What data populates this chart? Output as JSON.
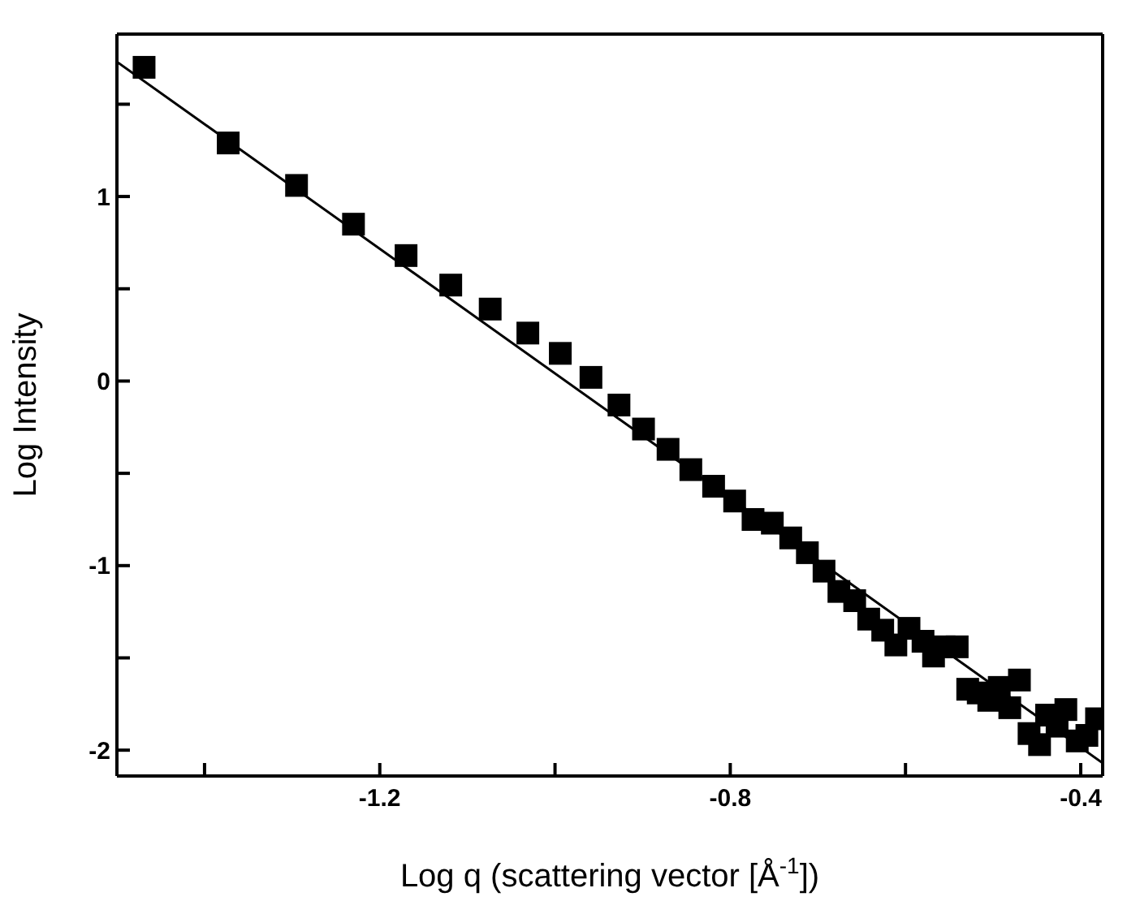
{
  "chart_data": {
    "type": "scatter",
    "xlabel": "Log q (scattering vector [Å$^{-1}$])",
    "ylabel": "Log Intensity",
    "xlim": [
      -1.5,
      -0.375
    ],
    "ylim": [
      -2.14,
      1.88
    ],
    "xticks": [
      {
        "value": -1.4,
        "label": null
      },
      -1.2,
      {
        "value": -1.0,
        "label": null
      },
      -0.8,
      {
        "value": -0.6,
        "label": null
      },
      -0.4
    ],
    "yticks": [
      -2,
      {
        "value": -1.5,
        "label": null
      },
      -1,
      {
        "value": -0.5,
        "label": null
      },
      0,
      {
        "value": 0.5,
        "label": null
      },
      1,
      {
        "value": 1.5,
        "label": null
      }
    ],
    "grid": false,
    "marker": "square",
    "series": [
      {
        "color": "#000000",
        "x": [
          -1.469,
          -1.373,
          -1.295,
          -1.23,
          -1.17,
          -1.119,
          -1.074,
          -1.031,
          -0.994,
          -0.959,
          -0.927,
          -0.899,
          -0.871,
          -0.845,
          -0.819,
          -0.795,
          -0.774,
          -0.752,
          -0.731,
          -0.712,
          -0.693,
          -0.676,
          -0.658,
          -0.642,
          -0.626,
          -0.611,
          -0.596,
          -0.58,
          -0.568,
          -0.556,
          -0.541,
          -0.529,
          -0.517,
          -0.505,
          -0.493,
          -0.481,
          -0.47,
          -0.459,
          -0.447,
          -0.439,
          -0.427,
          -0.417,
          -0.404,
          -0.393,
          -0.382
        ],
        "values": [
          1.7,
          1.29,
          1.06,
          0.85,
          0.68,
          0.52,
          0.39,
          0.26,
          0.15,
          0.02,
          -0.13,
          -0.26,
          -0.37,
          -0.48,
          -0.57,
          -0.65,
          -0.75,
          -0.77,
          -0.85,
          -0.93,
          -1.03,
          -1.14,
          -1.19,
          -1.29,
          -1.35,
          -1.43,
          -1.34,
          -1.41,
          -1.49,
          -1.44,
          -1.44,
          -1.67,
          -1.69,
          -1.73,
          -1.66,
          -1.77,
          -1.62,
          -1.91,
          -1.97,
          -1.81,
          -1.87,
          -1.78,
          -1.95,
          -1.92,
          -1.83
        ]
      },
      {
        "type": "line",
        "color": "#000000",
        "marker": "none",
        "x": [
          -1.5,
          -0.375
        ],
        "values": [
          1.73,
          -2.07
        ]
      }
    ]
  }
}
